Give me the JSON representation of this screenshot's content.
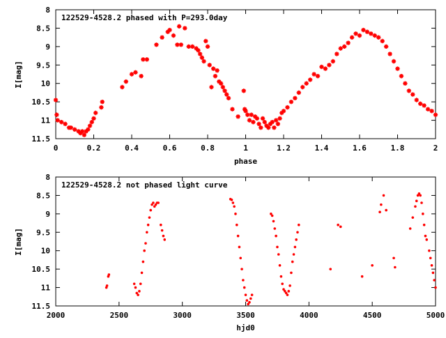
{
  "chart_data": [
    {
      "type": "scatter",
      "title": "122529-4528.2 phased with P=293.0day",
      "xlabel": "phase",
      "ylabel": "I[mag]",
      "xlim": [
        0,
        2
      ],
      "ylim": [
        8,
        11.5
      ],
      "y_inverted": true,
      "grid": false,
      "xticks": [
        0,
        0.2,
        0.4,
        0.6,
        0.8,
        1,
        1.2,
        1.4,
        1.6,
        1.8,
        2
      ],
      "xtick_labels": [
        "0",
        "0.2",
        "0.4",
        "0.6",
        "0.8",
        "1",
        "1.2",
        "1.4",
        "1.6",
        "1.8",
        "2"
      ],
      "yticks": [
        8,
        8.5,
        9,
        9.5,
        10,
        10.5,
        11,
        11.5
      ],
      "ytick_labels": [
        "8",
        "8.5",
        "9",
        "9.5",
        "10",
        "10.5",
        "11",
        "11.5"
      ],
      "color": "#ff0000",
      "marker": "star",
      "series": [
        {
          "x": [
            0.0,
            0.005,
            0.01,
            0.03,
            0.05,
            0.07,
            0.08,
            0.1,
            0.12,
            0.13,
            0.14,
            0.15,
            0.16,
            0.17,
            0.18,
            0.19,
            0.2,
            0.21,
            0.24,
            0.245,
            0.35,
            0.37,
            0.4,
            0.42,
            0.45,
            0.46,
            0.48,
            0.53,
            0.56,
            0.59,
            0.6,
            0.62,
            0.64,
            0.65,
            0.66,
            0.68,
            0.7,
            0.72,
            0.74,
            0.75,
            0.76,
            0.77,
            0.78,
            0.79,
            0.8,
            0.81,
            0.82,
            0.83,
            0.84,
            0.85,
            0.86,
            0.87,
            0.88,
            0.89,
            0.9,
            0.91,
            0.93,
            0.96,
            0.99,
            0.995,
            1.0,
            1.01,
            1.02,
            1.03,
            1.04,
            1.05,
            1.06,
            1.07,
            1.08,
            1.09,
            1.1,
            1.11,
            1.12,
            1.13,
            1.14,
            1.15,
            1.16,
            1.17,
            1.18,
            1.19,
            1.2,
            1.22,
            1.24,
            1.26,
            1.28,
            1.3,
            1.32,
            1.34,
            1.36,
            1.38,
            1.4,
            1.42,
            1.44,
            1.46,
            1.48,
            1.5,
            1.52,
            1.54,
            1.56,
            1.58,
            1.6,
            1.62,
            1.64,
            1.66,
            1.68,
            1.7,
            1.72,
            1.74,
            1.76,
            1.78,
            1.8,
            1.82,
            1.84,
            1.86,
            1.88,
            1.9,
            1.92,
            1.94,
            1.96,
            1.98,
            2.0
          ],
          "y": [
            10.45,
            10.85,
            11.0,
            11.05,
            11.1,
            11.2,
            11.2,
            11.25,
            11.3,
            11.35,
            11.3,
            11.4,
            11.3,
            11.25,
            11.15,
            11.05,
            10.95,
            10.8,
            10.65,
            10.5,
            10.1,
            9.95,
            9.75,
            9.7,
            9.8,
            9.35,
            9.35,
            8.95,
            8.75,
            8.6,
            8.55,
            8.7,
            8.95,
            8.45,
            8.95,
            8.5,
            9.0,
            9.0,
            9.05,
            9.1,
            9.2,
            9.3,
            9.4,
            8.85,
            9.0,
            9.5,
            10.1,
            9.6,
            9.8,
            9.65,
            9.95,
            10.0,
            10.1,
            10.2,
            10.3,
            10.4,
            10.7,
            10.9,
            10.2,
            10.7,
            10.75,
            10.85,
            11.0,
            10.85,
            11.05,
            10.9,
            10.95,
            11.1,
            11.2,
            10.95,
            11.05,
            11.15,
            11.2,
            11.1,
            11.05,
            11.2,
            11.0,
            11.1,
            10.95,
            10.8,
            10.75,
            10.65,
            10.5,
            10.4,
            10.25,
            10.1,
            10.0,
            9.9,
            9.75,
            9.8,
            9.55,
            9.6,
            9.5,
            9.4,
            9.2,
            9.05,
            9.0,
            8.9,
            8.75,
            8.65,
            8.7,
            8.55,
            8.6,
            8.65,
            8.7,
            8.75,
            8.85,
            9.0,
            9.2,
            9.4,
            9.6,
            9.8,
            10.0,
            10.2,
            10.3,
            10.45,
            10.55,
            10.6,
            10.7,
            10.75,
            10.85
          ]
        }
      ]
    },
    {
      "type": "scatter",
      "title": "122529-4528.2 not phased light curve",
      "xlabel": "hjd0",
      "ylabel": "I[mag]",
      "xlim": [
        2000,
        5000
      ],
      "ylim": [
        8,
        11.5
      ],
      "y_inverted": true,
      "grid": false,
      "xticks": [
        2000,
        2500,
        3000,
        3500,
        4000,
        4500,
        5000
      ],
      "xtick_labels": [
        "2000",
        "2500",
        "3000",
        "3500",
        "4000",
        "4500",
        "5000"
      ],
      "yticks": [
        8,
        8.5,
        9,
        9.5,
        10,
        10.5,
        11,
        11.5
      ],
      "ytick_labels": [
        "8",
        "8.5",
        "9",
        "9.5",
        "10",
        "10.5",
        "11",
        "11.5"
      ],
      "color": "#ff0000",
      "marker": "dot",
      "series": [
        {
          "x": [
            2400,
            2405,
            2415,
            2420,
            2620,
            2630,
            2640,
            2650,
            2660,
            2670,
            2680,
            2690,
            2700,
            2710,
            2720,
            2730,
            2740,
            2750,
            2760,
            2770,
            2780,
            2790,
            2800,
            2810,
            2830,
            2840,
            2850,
            2860,
            3380,
            3390,
            3400,
            3410,
            3420,
            3430,
            3440,
            3450,
            3460,
            3470,
            3480,
            3490,
            3500,
            3510,
            3520,
            3530,
            3540,
            3550,
            3700,
            3710,
            3720,
            3730,
            3740,
            3750,
            3760,
            3770,
            3780,
            3790,
            3800,
            3810,
            3820,
            3830,
            3840,
            3850,
            3860,
            3870,
            3880,
            3890,
            3900,
            3910,
            3920,
            4170,
            4230,
            4250,
            4420,
            4500,
            4560,
            4570,
            4590,
            4610,
            4670,
            4680,
            4800,
            4820,
            4840,
            4850,
            4860,
            4870,
            4880,
            4890,
            4900,
            4910,
            4920,
            4930,
            4950,
            4960,
            4970,
            4980,
            4990,
            5000
          ],
          "y": [
            11.0,
            10.95,
            10.7,
            10.65,
            10.9,
            11.0,
            11.15,
            11.2,
            11.1,
            10.9,
            10.6,
            10.3,
            10.0,
            9.8,
            9.5,
            9.3,
            9.1,
            8.9,
            8.75,
            8.7,
            8.8,
            8.75,
            8.7,
            8.7,
            9.3,
            9.45,
            9.6,
            9.7,
            8.6,
            8.62,
            8.7,
            8.8,
            9.0,
            9.3,
            9.6,
            9.9,
            10.2,
            10.5,
            10.8,
            11.0,
            11.2,
            11.35,
            11.45,
            11.4,
            11.3,
            11.2,
            9.0,
            9.05,
            9.2,
            9.4,
            9.6,
            9.9,
            10.1,
            10.4,
            10.7,
            10.9,
            11.05,
            11.1,
            11.15,
            11.2,
            11.1,
            10.95,
            10.6,
            10.3,
            10.1,
            9.9,
            9.7,
            9.5,
            9.3,
            10.5,
            9.3,
            9.35,
            10.7,
            10.4,
            8.95,
            8.75,
            8.5,
            8.9,
            10.2,
            10.45,
            9.4,
            9.1,
            8.8,
            8.65,
            8.5,
            8.45,
            8.5,
            8.7,
            9.0,
            9.3,
            9.6,
            9.7,
            10.0,
            10.2,
            10.4,
            10.6,
            10.8,
            11.0
          ]
        }
      ]
    }
  ]
}
